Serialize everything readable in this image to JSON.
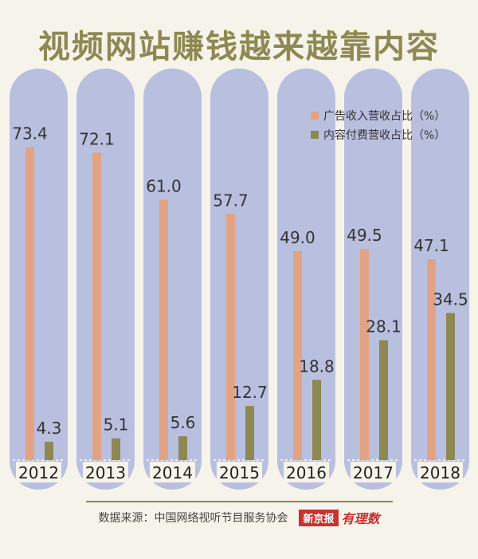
{
  "chart_data": {
    "type": "bar",
    "title": "视频网站赚钱越来越靠内容",
    "categories": [
      "2012",
      "2013",
      "2014",
      "2015",
      "2016",
      "2017",
      "2018"
    ],
    "series": [
      {
        "name": "广告收入营收占比（%）",
        "values": [
          73.4,
          72.1,
          61.0,
          57.7,
          49.0,
          49.5,
          47.1
        ],
        "labels": [
          "73.4",
          "72.1",
          "61.0",
          "57.7",
          "49.0",
          "49.5",
          "47.1"
        ],
        "color": "#e2a284"
      },
      {
        "name": "内容付费营收占比（%）",
        "values": [
          4.3,
          5.1,
          5.6,
          12.7,
          18.8,
          28.1,
          34.5
        ],
        "labels": [
          "4.3",
          "5.1",
          "5.6",
          "12.7",
          "18.8",
          "28.1",
          "34.5"
        ],
        "color": "#8e8853"
      }
    ],
    "ylim": [
      0,
      100
    ],
    "grid": false,
    "legend_position": "top-right"
  },
  "footer": {
    "source": "数据来源：中国网络视听节目服务协会",
    "logo_primary": "新京报",
    "logo_secondary": "有理数"
  },
  "colors": {
    "pill": "#b9c0df",
    "title": "#8e8853",
    "logo": "#c8322f"
  }
}
